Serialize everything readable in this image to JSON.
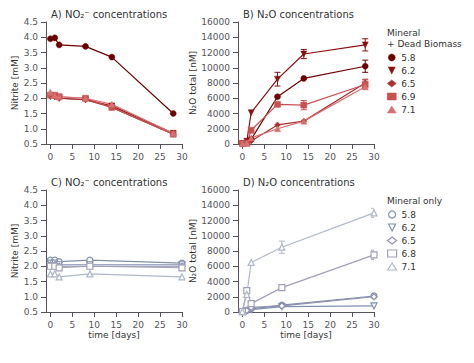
{
  "chart_data": [
    {
      "type": "line",
      "title": "A) NO₂⁻ concentrations",
      "ylabel": "Nitrite [mM]",
      "grid": false,
      "x": [
        0,
        1,
        2,
        8,
        14,
        28
      ],
      "xlim": [
        -1,
        30
      ],
      "xticks": [
        0,
        5,
        10,
        15,
        20,
        25,
        30
      ],
      "ylim": [
        0.5,
        4.5
      ],
      "yticks": [
        0.5,
        {
          "value": 1,
          "label": "1.0"
        },
        1.5,
        {
          "value": 2,
          "label": "2.0"
        },
        2.5,
        {
          "value": 3,
          "label": "3.0"
        },
        3.5,
        {
          "value": 4,
          "label": "4.0"
        },
        4.5
      ],
      "series": [
        {
          "name": "5.8",
          "color": "#6B0000",
          "marker": "circle",
          "values": [
            3.95,
            3.98,
            3.75,
            3.7,
            3.35,
            1.5
          ]
        },
        {
          "name": "6.2",
          "color": "#8B1010",
          "marker": "triangle_down",
          "values": [
            2.05,
            2.05,
            2.0,
            1.95,
            1.75,
            0.85
          ]
        },
        {
          "name": "6.5",
          "color": "#A83030",
          "marker": "diamond",
          "values": [
            2.1,
            2.05,
            2.0,
            1.95,
            1.7,
            0.82
          ]
        },
        {
          "name": "6.9",
          "color": "#C85050",
          "marker": "square",
          "values": [
            2.1,
            2.1,
            2.05,
            2.0,
            1.7,
            0.82
          ]
        },
        {
          "name": "7.1",
          "color": "#D87070",
          "marker": "triangle_up",
          "values": [
            2.2,
            2.1,
            2.05,
            2.0,
            1.8,
            0.85
          ]
        }
      ]
    },
    {
      "type": "line",
      "title": "B) N₂O concentrations",
      "ylabel": "N₂O total [nM]",
      "grid": false,
      "legend": "right",
      "legend_title": "Mineral\n+ Dead Biomass",
      "x": [
        0,
        1,
        2,
        8,
        14,
        28
      ],
      "xlim": [
        -1,
        30
      ],
      "xticks": [
        0,
        5,
        10,
        15,
        20,
        25,
        30
      ],
      "ylim": [
        0,
        16000
      ],
      "yticks": [
        0,
        2000,
        4000,
        6000,
        8000,
        10000,
        12000,
        14000,
        16000
      ],
      "series": [
        {
          "name": "5.8",
          "color": "#6B0000",
          "marker": "circle",
          "values": [
            50,
            200,
            600,
            6200,
            8600,
            10200
          ],
          "errors": [
            0,
            0,
            0,
            0,
            0,
            800
          ]
        },
        {
          "name": "6.2",
          "color": "#8B1010",
          "marker": "triangle_down",
          "values": [
            50,
            350,
            4100,
            8500,
            11800,
            13000
          ],
          "errors": [
            0,
            0,
            0,
            900,
            600,
            800
          ]
        },
        {
          "name": "6.5",
          "color": "#A83030",
          "marker": "diamond",
          "values": [
            50,
            150,
            400,
            2500,
            3000,
            8000
          ],
          "errors": [
            0,
            0,
            0,
            0,
            0,
            500
          ]
        },
        {
          "name": "6.9",
          "color": "#C85050",
          "marker": "square",
          "values": [
            50,
            100,
            1800,
            5200,
            5100,
            7800
          ],
          "errors": [
            0,
            0,
            0,
            0,
            600,
            600
          ]
        },
        {
          "name": "7.1",
          "color": "#D87070",
          "marker": "triangle_up",
          "values": [
            50,
            100,
            800,
            2000,
            3000,
            7500
          ],
          "errors": [
            0,
            0,
            0,
            0,
            0,
            0
          ]
        }
      ]
    },
    {
      "type": "line",
      "title": "C) NO₂⁻ concentrations",
      "ylabel": "Nitrite [mM]",
      "xlabel": "time [days]",
      "grid": false,
      "x": [
        0,
        1,
        2,
        9,
        30
      ],
      "xlim": [
        -1,
        30
      ],
      "xticks": [
        0,
        5,
        10,
        15,
        20,
        25,
        30
      ],
      "ylim": [
        0.5,
        4.5
      ],
      "yticks": [
        0.5,
        {
          "value": 1,
          "label": "1.0"
        },
        1.5,
        {
          "value": 2,
          "label": "2.0"
        },
        2.5,
        {
          "value": 3,
          "label": "3.0"
        },
        3.5,
        {
          "value": 4,
          "label": "4.0"
        },
        4.5
      ],
      "series": [
        {
          "name": "5.8",
          "color": "#8090a8",
          "marker": "open_circle",
          "values": [
            2.2,
            2.2,
            2.15,
            2.2,
            2.1
          ]
        },
        {
          "name": "6.2",
          "color": "#8090b0",
          "marker": "open_triangle_down",
          "values": [
            2.1,
            2.1,
            2.05,
            2.05,
            2.05
          ]
        },
        {
          "name": "6.5",
          "color": "#9090b0",
          "marker": "open_diamond",
          "values": [
            2.05,
            2.05,
            2.0,
            2.0,
            2.0
          ]
        },
        {
          "name": "6.8",
          "color": "#a0a0b8",
          "marker": "open_square",
          "values": [
            2.0,
            2.0,
            1.95,
            2.0,
            1.95
          ]
        },
        {
          "name": "7.1",
          "color": "#b0b8c8",
          "marker": "open_triangle_up",
          "values": [
            1.75,
            1.75,
            1.65,
            1.75,
            1.65
          ]
        }
      ]
    },
    {
      "type": "line",
      "title": "D) N₂O concentrations",
      "ylabel": "N₂O total [nM]",
      "xlabel": "time [days]",
      "grid": false,
      "legend": "right",
      "legend_title": "Mineral only",
      "x": [
        0,
        1,
        2,
        9,
        30
      ],
      "xlim": [
        -1,
        30
      ],
      "xticks": [
        0,
        5,
        10,
        15,
        20,
        25,
        30
      ],
      "ylim": [
        0,
        16000
      ],
      "yticks": [
        0,
        2000,
        4000,
        6000,
        8000,
        10000,
        12000,
        14000,
        16000
      ],
      "series": [
        {
          "name": "5.8",
          "color": "#8090a8",
          "marker": "open_circle",
          "values": [
            50,
            200,
            400,
            900,
            2100
          ],
          "errors": [
            0,
            0,
            0,
            0,
            0
          ]
        },
        {
          "name": "6.2",
          "color": "#8090b0",
          "marker": "open_triangle_down",
          "values": [
            50,
            150,
            300,
            700,
            800
          ],
          "errors": [
            0,
            0,
            0,
            0,
            0
          ]
        },
        {
          "name": "6.5",
          "color": "#9090b0",
          "marker": "open_diamond",
          "values": [
            50,
            200,
            600,
            800,
            2000
          ],
          "errors": [
            0,
            0,
            0,
            0,
            0
          ]
        },
        {
          "name": "6.8",
          "color": "#a0a0b8",
          "marker": "open_square",
          "values": [
            50,
            2800,
            1100,
            3200,
            7500
          ],
          "errors": [
            0,
            0,
            0,
            0,
            600
          ]
        },
        {
          "name": "7.1",
          "color": "#b0b8c8",
          "marker": "open_triangle_up",
          "values": [
            50,
            2300,
            6500,
            8500,
            13000
          ],
          "errors": [
            0,
            0,
            0,
            800,
            600
          ]
        }
      ]
    }
  ]
}
